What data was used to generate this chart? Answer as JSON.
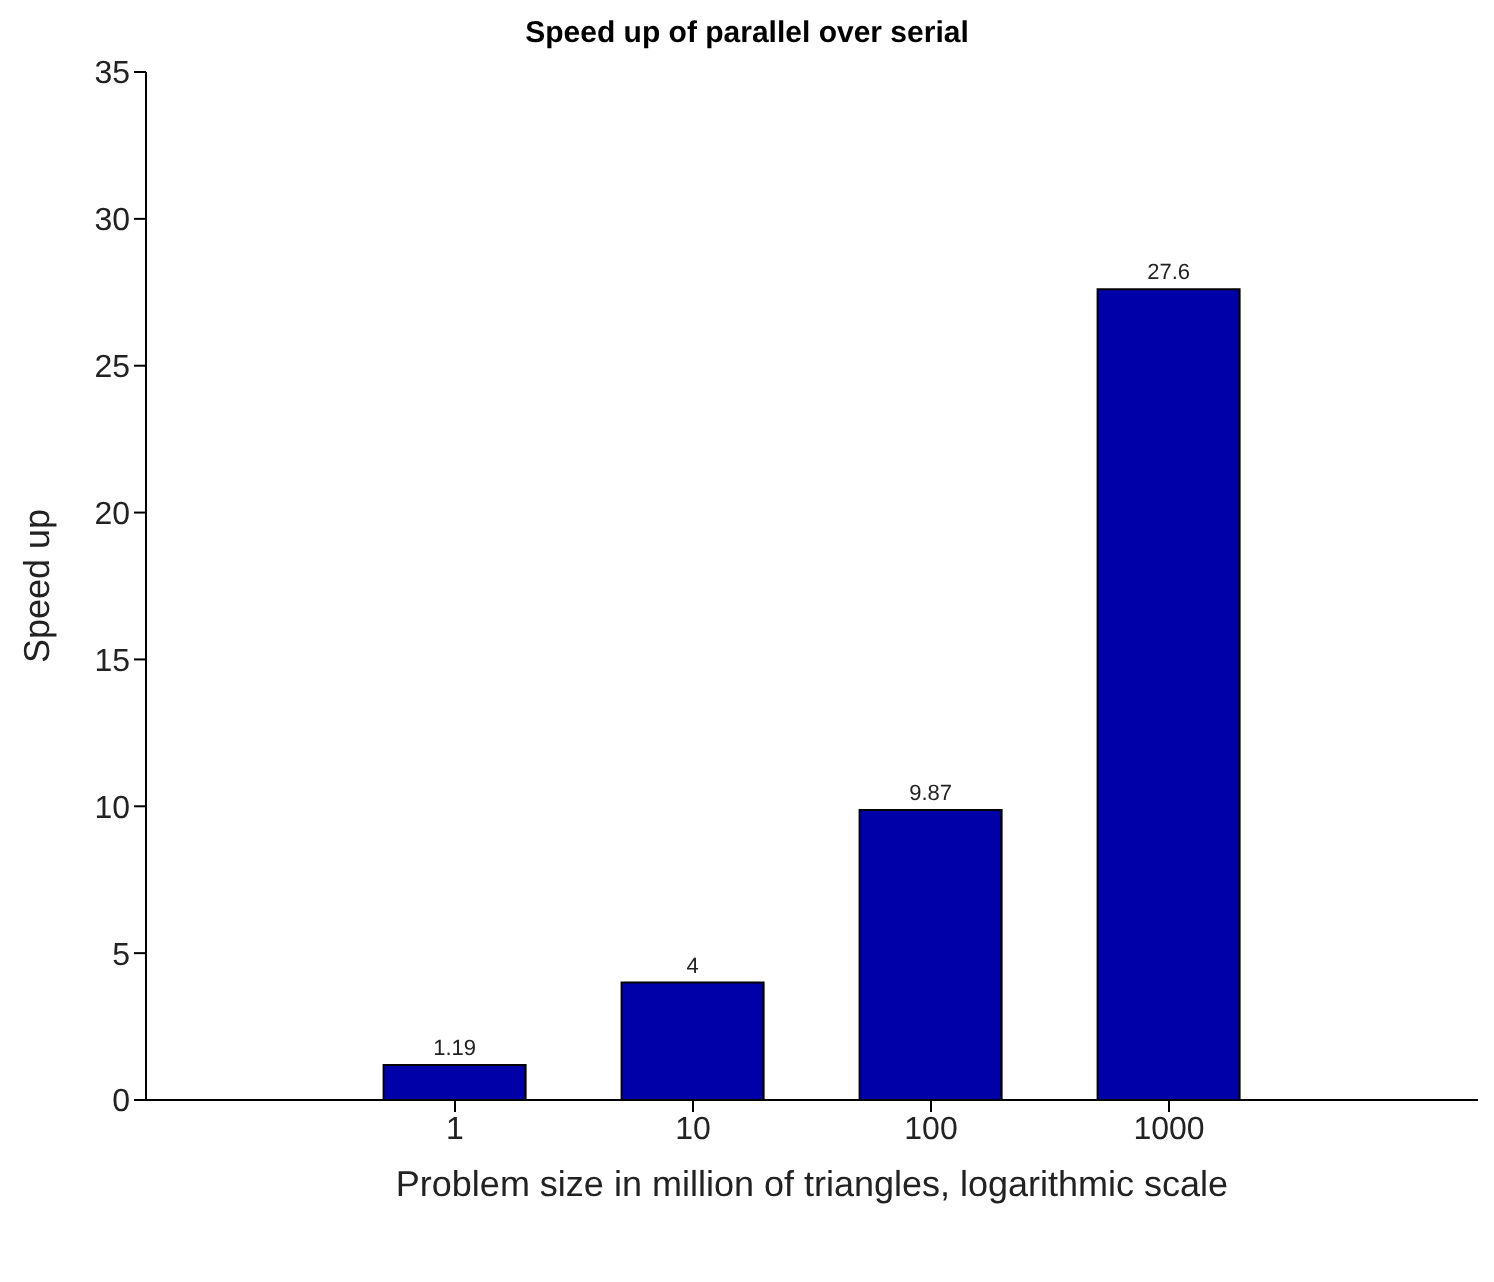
{
  "chart_data": {
    "type": "bar",
    "title": "Speed up of parallel over serial",
    "xlabel": "Problem size in million of triangles, logarithmic scale",
    "ylabel": "Speed up",
    "categories": [
      "1",
      "10",
      "100",
      "1000"
    ],
    "values": [
      1.19,
      4,
      9.87,
      27.6
    ],
    "color": "#0000a8",
    "ylim": [
      0,
      35
    ],
    "yticks": [
      0,
      5,
      10,
      15,
      20,
      25,
      30,
      35
    ],
    "grid": false,
    "data_labels": true
  }
}
